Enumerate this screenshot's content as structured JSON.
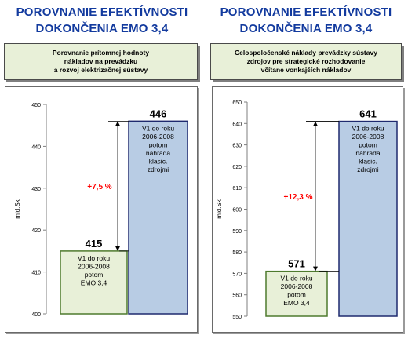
{
  "left": {
    "title_line1": "POROVNANIE EFEKTÍVNOSTI",
    "title_line2": "DOKONČENIA  EMO 3,4",
    "subtitle": [
      "Porovnanie prítomnej hodnoty",
      "nákladov na prevádzku",
      "a rozvoj elektrizačnej sústavy"
    ]
  },
  "right": {
    "title_line1": "POROVNANIE EFEKTÍVNOSTI",
    "title_line2": "DOKONČENIA  EMO 3,4",
    "subtitle": [
      "Celospoločenské náklady prevádzky sústavy",
      "zdrojov pre strategické rozhodovanie",
      "včítane vonkajších nákladov"
    ]
  },
  "colors": {
    "title": "#123a9e",
    "green_bar": "#e8f0d8",
    "blue_bar": "#b8cce4",
    "delta": "#ff0000"
  },
  "chart_data": [
    {
      "type": "bar",
      "ylabel": "mld.Sk",
      "ylim": [
        400,
        450
      ],
      "yticks": [
        400,
        410,
        420,
        430,
        440,
        450
      ],
      "bars": [
        {
          "value": 415,
          "value_label": "415",
          "label": [
            "V1 do roku",
            "2006-2008",
            "potom",
            "EMO 3,4"
          ],
          "color": "#e8f0d8"
        },
        {
          "value": 446,
          "value_label": "446",
          "label": [
            "V1 do roku",
            "2006-2008",
            "potom",
            "náhrada",
            "klasic.",
            "zdrojmi"
          ],
          "color": "#b8cce4"
        }
      ],
      "annotation": "+7,5 %"
    },
    {
      "type": "bar",
      "ylabel": "mld.Sk",
      "ylim": [
        550,
        650
      ],
      "yticks": [
        550,
        560,
        570,
        580,
        590,
        600,
        610,
        620,
        630,
        640,
        650
      ],
      "bars": [
        {
          "value": 571,
          "value_label": "571",
          "label": [
            "V1 do roku",
            "2006-2008",
            "potom",
            "EMO 3,4"
          ],
          "color": "#e8f0d8"
        },
        {
          "value": 641,
          "value_label": "641",
          "label": [
            "V1 do roku",
            "2006-2008",
            "potom",
            "náhrada",
            "klasic.",
            "zdrojmi"
          ],
          "color": "#b8cce4"
        }
      ],
      "annotation": "+12,3 %"
    }
  ]
}
